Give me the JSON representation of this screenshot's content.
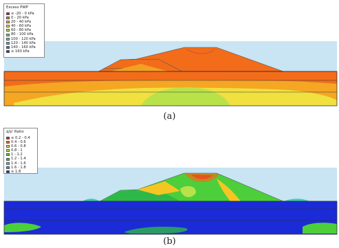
{
  "figure": {
    "panel_a": {
      "caption": "(a)",
      "legend": {
        "title": "Excess PWP",
        "items": [
          {
            "label": "≤ -20 - 0 kPa",
            "color": "#c81e1e"
          },
          {
            "label": "0 - 20 kPa",
            "color": "#f26c1a"
          },
          {
            "label": "20 - 40 kPa",
            "color": "#f5a623"
          },
          {
            "label": "40 - 60 kPa",
            "color": "#f0e040"
          },
          {
            "label": "60 - 80 kPa",
            "color": "#b9e24a"
          },
          {
            "label": "80 - 100 kPa",
            "color": "#66d66a"
          },
          {
            "label": "100 - 120 kPa",
            "color": "#3ccfb4"
          },
          {
            "label": "120 - 140 kPa",
            "color": "#3ab2e6"
          },
          {
            "label": "140 - 160 kPa",
            "color": "#2f6fe0"
          },
          {
            "label": "≥ 160 kPa",
            "color": "#2233cc"
          }
        ]
      }
    },
    "panel_b": {
      "caption": "(b)",
      "legend": {
        "title": "q/p' Ratio",
        "items": [
          {
            "label": "≤ 0.2 - 0.4",
            "color": "#c81e1e"
          },
          {
            "label": "0.4 - 0.6",
            "color": "#f26c1a"
          },
          {
            "label": "0.6 - 0.8",
            "color": "#f5c623"
          },
          {
            "label": "0.8 - 1",
            "color": "#b9e24a"
          },
          {
            "label": "1 - 1.2",
            "color": "#4ccf3a"
          },
          {
            "label": "1.2 - 1.4",
            "color": "#2fb84a"
          },
          {
            "label": "1.4 - 1.6",
            "color": "#3ccfb4"
          },
          {
            "label": "1.6 - 1.8",
            "color": "#2f8fe0"
          },
          {
            "label": "≥ 1.8",
            "color": "#1b2bd8"
          }
        ]
      }
    }
  }
}
